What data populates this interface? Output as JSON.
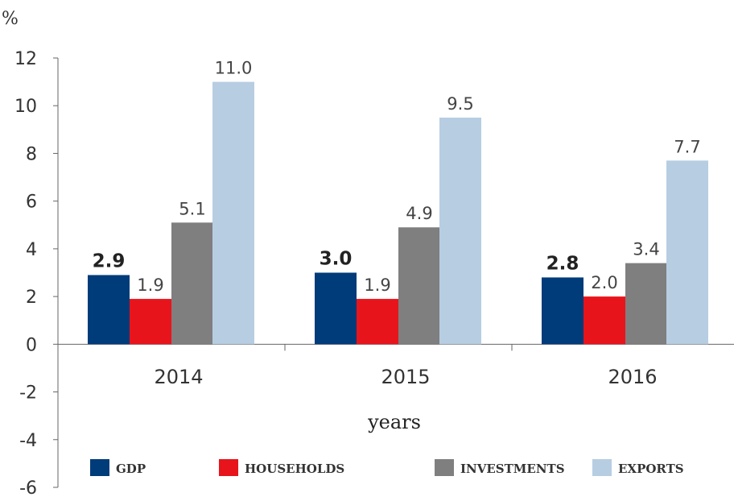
{
  "chart_data": {
    "type": "bar",
    "y_unit": "%",
    "xlabel": "years",
    "categories": [
      "2014",
      "2015",
      "2016"
    ],
    "series": [
      {
        "name": "GDP",
        "color": "#003b7a",
        "values": [
          2.9,
          3.0,
          2.8
        ],
        "labels": [
          "2.9",
          "3.0",
          "2.8"
        ],
        "bold_labels": true
      },
      {
        "name": "HOUSEHOLDS",
        "color": "#e8141c",
        "values": [
          1.9,
          1.9,
          2.0
        ],
        "labels": [
          "1.9",
          "1.9",
          "2.0"
        ],
        "bold_labels": false
      },
      {
        "name": "INVESTMENTS",
        "color": "#7f7f7f",
        "values": [
          5.1,
          4.9,
          3.4
        ],
        "labels": [
          "5.1",
          "4.9",
          "3.4"
        ],
        "bold_labels": false
      },
      {
        "name": "EXPORTS",
        "color": "#b7cde2",
        "values": [
          11.0,
          9.5,
          7.7
        ],
        "labels": [
          "11.0",
          "9.5",
          "7.7"
        ],
        "bold_labels": false
      }
    ],
    "ylim": [
      -6,
      12
    ],
    "yticks": [
      12,
      10,
      8,
      6,
      4,
      2,
      0,
      -2,
      -4,
      -6
    ],
    "grid": false,
    "legend": "bottom"
  }
}
